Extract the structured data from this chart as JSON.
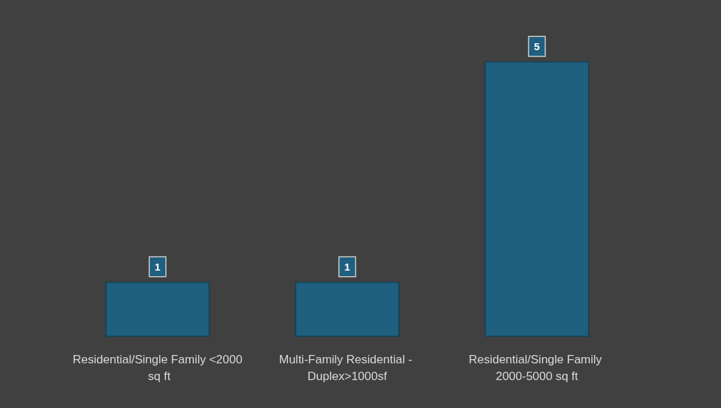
{
  "chart_data": {
    "type": "bar",
    "categories": [
      "Residential/Single Family <2000 sq ft",
      "Multi-Family Residential - Duplex>1000sf",
      "Residential/Single Family 2000-5000 sq ft"
    ],
    "values": [
      1,
      1,
      5
    ],
    "color": "#1f5f7f",
    "data_labels": true
  }
}
